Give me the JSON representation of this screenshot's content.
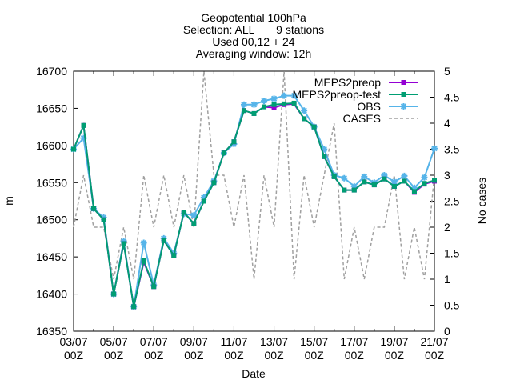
{
  "chart_data": {
    "type": "line",
    "title_lines": [
      "Geopotential 100hPa",
      "Selection: ALL       9 stations",
      "Used 00,12 + 24",
      "Averaging window: 12h"
    ],
    "xlabel": "Date",
    "ylabel": "m",
    "y2label": "No cases",
    "ylim": [
      16350,
      16700
    ],
    "y2lim": [
      0,
      5
    ],
    "yticks": [
      16350,
      16400,
      16450,
      16500,
      16550,
      16600,
      16650,
      16700
    ],
    "y2ticks": [
      "0",
      "0.5",
      "1",
      "1.5",
      "2",
      "2.5",
      "3",
      "3.5",
      "4",
      "4.5",
      "5"
    ],
    "x_tick_labels": [
      {
        "line1": "03/07",
        "line2": "00Z"
      },
      {
        "line1": "05/07",
        "line2": "00Z"
      },
      {
        "line1": "07/07",
        "line2": "00Z"
      },
      {
        "line1": "09/07",
        "line2": "00Z"
      },
      {
        "line1": "11/07",
        "line2": "00Z"
      },
      {
        "line1": "13/07",
        "line2": "00Z"
      },
      {
        "line1": "15/07",
        "line2": "00Z"
      },
      {
        "line1": "17/07",
        "line2": "00Z"
      },
      {
        "line1": "19/07",
        "line2": "00Z"
      },
      {
        "line1": "21/07",
        "line2": "00Z"
      }
    ],
    "x_range_days": [
      3,
      21
    ],
    "x_step_hours": 12,
    "legend_position": "top-right",
    "series": [
      {
        "name": "MEPS2preop",
        "color": "#9400d3",
        "marker": "square",
        "axis": "y1",
        "values": [
          16595,
          16627,
          16515,
          16500,
          16400,
          16468,
          16383,
          16443,
          16410,
          16472,
          16452,
          16510,
          16495,
          16525,
          16550,
          16590,
          16605,
          16647,
          16643,
          16652,
          16651,
          16655,
          16656,
          16636,
          16625,
          16585,
          16558,
          16540,
          16540,
          16551,
          16547,
          16555,
          16545,
          16552,
          16537,
          16548,
          16552
        ]
      },
      {
        "name": "MEPS2preop-test",
        "color": "#009e73",
        "marker": "square",
        "axis": "y1",
        "values": [
          16595,
          16627,
          16515,
          16500,
          16400,
          16468,
          16383,
          16445,
          16410,
          16472,
          16452,
          16510,
          16495,
          16525,
          16550,
          16590,
          16605,
          16647,
          16643,
          16652,
          16655,
          16656,
          16657,
          16636,
          16625,
          16585,
          16558,
          16540,
          16540,
          16551,
          16547,
          16555,
          16545,
          16552,
          16538,
          16549,
          16553
        ]
      },
      {
        "name": "OBS",
        "color": "#56b4e9",
        "marker": "star",
        "axis": "y1",
        "values": [
          16595,
          16610,
          16515,
          16503,
          16400,
          16471,
          16383,
          16469,
          16412,
          16475,
          16455,
          16508,
          16506,
          16530,
          16552,
          16590,
          16602,
          16655,
          16655,
          16660,
          16663,
          16667,
          16667,
          16647,
          16625,
          16595,
          16560,
          16556,
          16545,
          16558,
          16550,
          16560,
          16551,
          16559,
          16543,
          16557,
          16596
        ]
      },
      {
        "name": "CASES",
        "color": "#a0a0a0",
        "dashed": true,
        "axis": "y2",
        "values": [
          2,
          3,
          2,
          2,
          1,
          2,
          1,
          3,
          2,
          3,
          2,
          3,
          2,
          5,
          3,
          3,
          2,
          3,
          1,
          3,
          2,
          5,
          1,
          3,
          2,
          3,
          4,
          1,
          2,
          1,
          2,
          2,
          3,
          1,
          2,
          1,
          3
        ]
      }
    ]
  }
}
